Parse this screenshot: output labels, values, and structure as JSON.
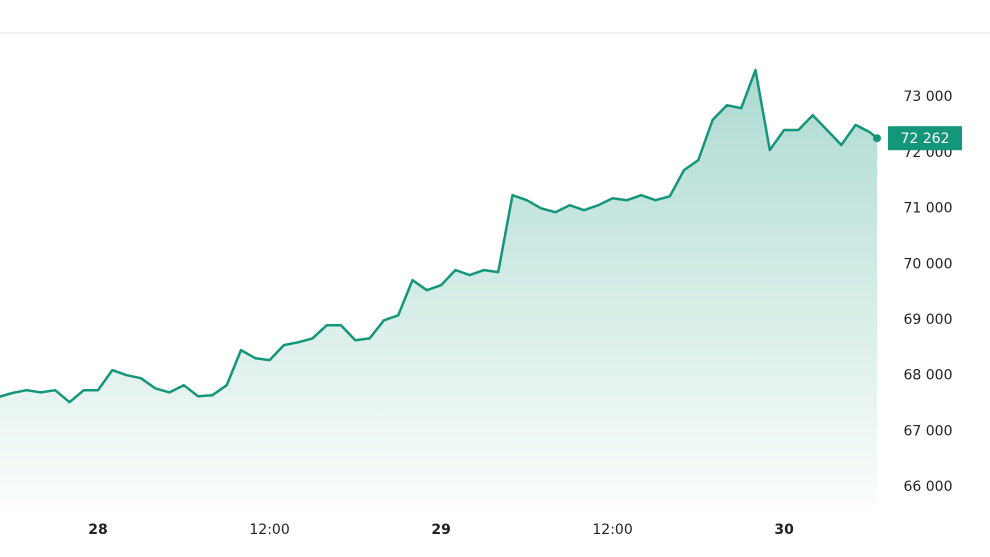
{
  "chart_data": {
    "type": "line",
    "x": [
      -7,
      -6,
      -5,
      -4,
      -3,
      -2,
      -1,
      0,
      1,
      2,
      3,
      4,
      5,
      6,
      7,
      8,
      9,
      10,
      11,
      12,
      13,
      14,
      15,
      16,
      17,
      18,
      19,
      20,
      21,
      22,
      23,
      24,
      25,
      26,
      27,
      28,
      29,
      30,
      31,
      32,
      33,
      34,
      35,
      36,
      37,
      38,
      39,
      40,
      41,
      42,
      43,
      44,
      45,
      46,
      47,
      48,
      49,
      50,
      51,
      52,
      53,
      54,
      54.5
    ],
    "series": [
      {
        "color": "#14967a",
        "values": [
          67615,
          67690,
          67740,
          67700,
          67740,
          67525,
          67740,
          67740,
          68100,
          68010,
          67955,
          67775,
          67700,
          67830,
          67630,
          67650,
          67830,
          68460,
          68315,
          68280,
          68550,
          68600,
          68670,
          68905,
          68905,
          68635,
          68670,
          68995,
          69085,
          69715,
          69535,
          69625,
          69895,
          69805,
          69895,
          69860,
          71240,
          71150,
          71005,
          70935,
          71060,
          70970,
          71060,
          71185,
          71150,
          71240,
          71150,
          71220,
          71690,
          71870,
          72590,
          72855,
          72800,
          73485,
          72050,
          72410,
          72410,
          72675,
          72410,
          72140,
          72500,
          72370,
          72262
        ]
      }
    ],
    "current_label": "72 262",
    "xlim": [
      -6.86,
      54.5
    ],
    "xticks": [
      {
        "value": 0,
        "label": "28"
      },
      {
        "value": 12,
        "label": "12:00"
      },
      {
        "value": 24,
        "label": "29"
      },
      {
        "value": 36,
        "label": "12:00"
      },
      {
        "value": 48,
        "label": "30"
      }
    ],
    "ylim": [
      65680,
      74150
    ],
    "yticks": [
      {
        "value": 66000,
        "label": "66 000"
      },
      {
        "value": 67000,
        "label": "67 000"
      },
      {
        "value": 68000,
        "label": "68 000"
      },
      {
        "value": 69000,
        "label": "69 000"
      },
      {
        "value": 70000,
        "label": "70 000"
      },
      {
        "value": 71000,
        "label": "71 000"
      },
      {
        "value": 72000,
        "label": "72 000"
      },
      {
        "value": 73000,
        "label": "73 000"
      }
    ]
  }
}
